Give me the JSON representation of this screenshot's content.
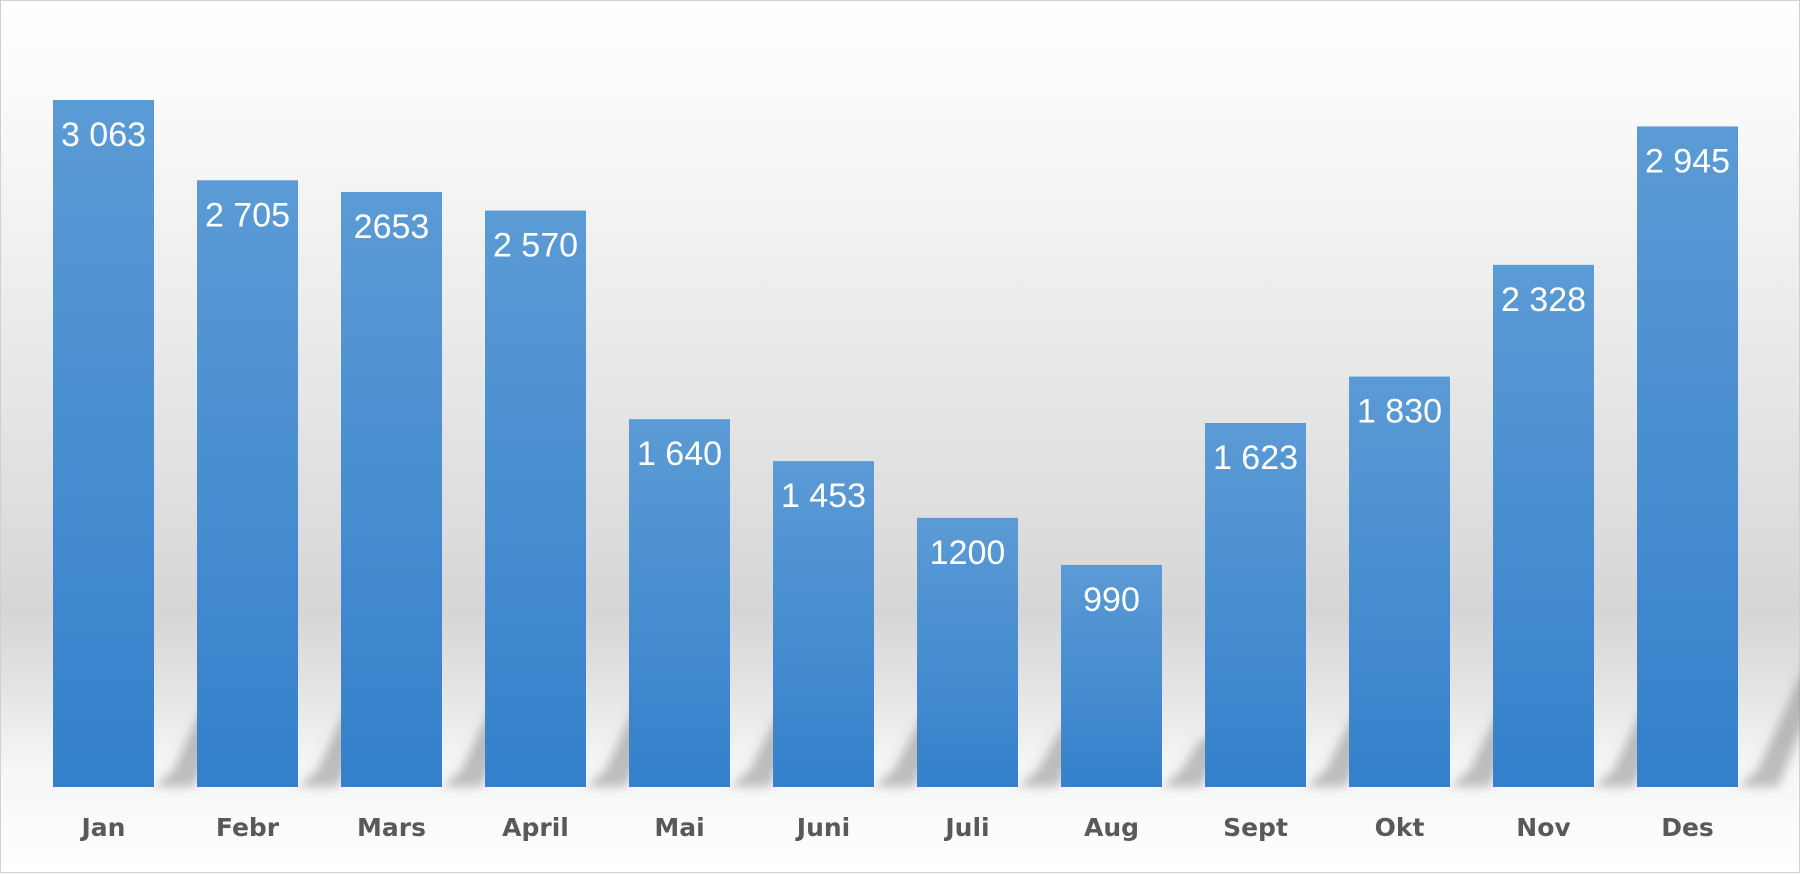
{
  "chart_data": {
    "type": "bar",
    "categories": [
      "Jan",
      "Febr",
      "Mars",
      "April",
      "Mai",
      "Juni",
      "Juli",
      "Aug",
      "Sept",
      "Okt",
      "Nov",
      "Des"
    ],
    "values": [
      3063,
      2705,
      2653,
      2570,
      1640,
      1453,
      1200,
      990,
      1623,
      1830,
      2328,
      2945
    ],
    "data_labels": [
      "3 063",
      "2 705",
      "2653",
      "2 570",
      "1 640",
      "1 453",
      "1200",
      "990",
      "1 623",
      "1 830",
      "2 328",
      "2 945"
    ],
    "title": "",
    "xlabel": "",
    "ylabel": "",
    "ylim": [
      0,
      3063
    ],
    "grid": false,
    "legend": "none",
    "colors": {
      "bar_top": "#5b9bd5",
      "bar_bottom": "#3580cc",
      "label": "#ffffff",
      "category_text": "#595959"
    }
  }
}
